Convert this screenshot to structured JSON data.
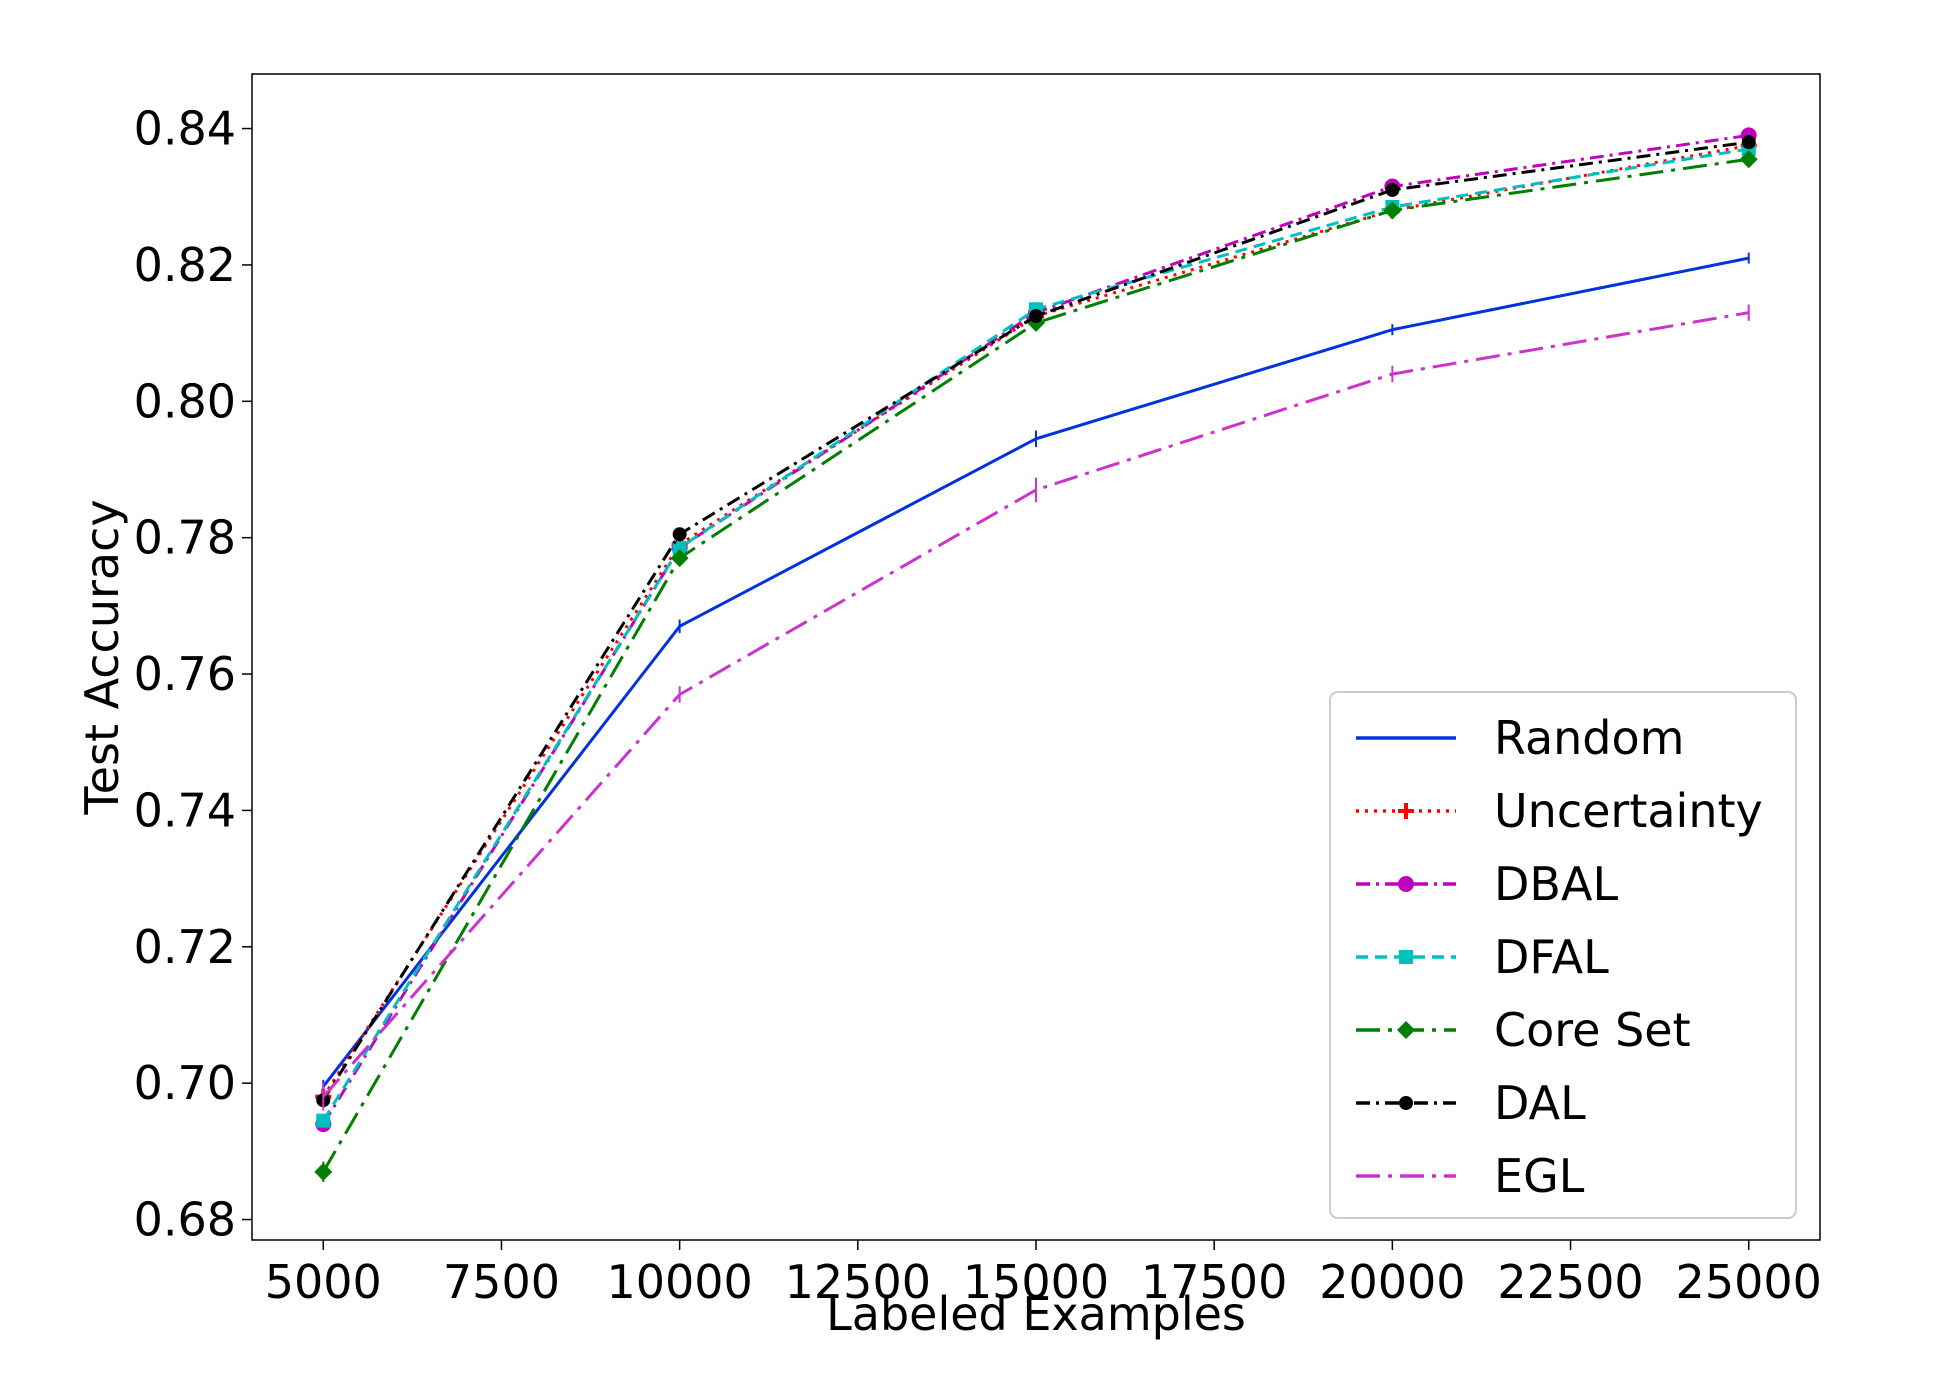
{
  "chart_data": {
    "type": "line",
    "title": "",
    "xlabel": "Labeled Examples",
    "ylabel": "Test Accuracy",
    "x": [
      5000,
      10000,
      15000,
      20000,
      25000
    ],
    "xlim": [
      4000,
      26000
    ],
    "ylim": [
      0.677,
      0.848
    ],
    "xticks": [
      5000,
      7500,
      10000,
      12500,
      15000,
      17500,
      20000,
      22500,
      25000
    ],
    "yticks": [
      0.68,
      0.7,
      0.72,
      0.74,
      0.76,
      0.78,
      0.8,
      0.82,
      0.84
    ],
    "xtick_labels": [
      "5000",
      "7500",
      "10000",
      "12500",
      "15000",
      "17500",
      "20000",
      "22500",
      "25000"
    ],
    "ytick_labels": [
      "0.68",
      "0.70",
      "0.72",
      "0.74",
      "0.76",
      "0.78",
      "0.80",
      "0.82",
      "0.84"
    ],
    "grid": false,
    "legend_position": "bottom-right",
    "series": [
      {
        "name": "Random",
        "values": [
          0.6995,
          0.767,
          0.7945,
          0.8105,
          0.821
        ],
        "error": [
          0.001,
          0.001,
          0.0012,
          0.0008,
          0.0008
        ],
        "color": "#0033dd",
        "dash": "solid",
        "marker": "none"
      },
      {
        "name": "Uncertainty",
        "values": [
          0.698,
          0.779,
          0.8125,
          0.828,
          0.8375
        ],
        "error": [
          0.001,
          0.001,
          0.001,
          0.001,
          0.001
        ],
        "color": "#ff0000",
        "dash": "dotted",
        "marker": "plus"
      },
      {
        "name": "DBAL",
        "values": [
          0.694,
          0.7785,
          0.813,
          0.8315,
          0.839
        ],
        "error": [
          0.001,
          0.001,
          0.001,
          0.001,
          0.001
        ],
        "color": "#bf00bf",
        "dash": "dashdot",
        "marker": "circle"
      },
      {
        "name": "DFAL",
        "values": [
          0.6945,
          0.7785,
          0.8135,
          0.8285,
          0.837
        ],
        "error": [
          0.001,
          0.001,
          0.001,
          0.001,
          0.001
        ],
        "color": "#00bfbf",
        "dash": "dashed",
        "marker": "square"
      },
      {
        "name": "Core Set",
        "values": [
          0.687,
          0.777,
          0.8115,
          0.828,
          0.8355
        ],
        "error": [
          0.0015,
          0.001,
          0.001,
          0.001,
          0.001
        ],
        "color": "#007f00",
        "dash": "longdashdot",
        "marker": "diamond"
      },
      {
        "name": "DAL",
        "values": [
          0.6975,
          0.7805,
          0.8125,
          0.831,
          0.838
        ],
        "error": [
          0.001,
          0.001,
          0.001,
          0.001,
          0.001
        ],
        "color": "#000000",
        "dash": "dashdot",
        "marker": "circle-small"
      },
      {
        "name": "EGL",
        "values": [
          0.698,
          0.757,
          0.787,
          0.804,
          0.813
        ],
        "error": [
          0.002,
          0.0012,
          0.0018,
          0.0012,
          0.0012
        ],
        "color": "#cc33cc",
        "dash": "longdashdot",
        "marker": "none"
      }
    ]
  }
}
